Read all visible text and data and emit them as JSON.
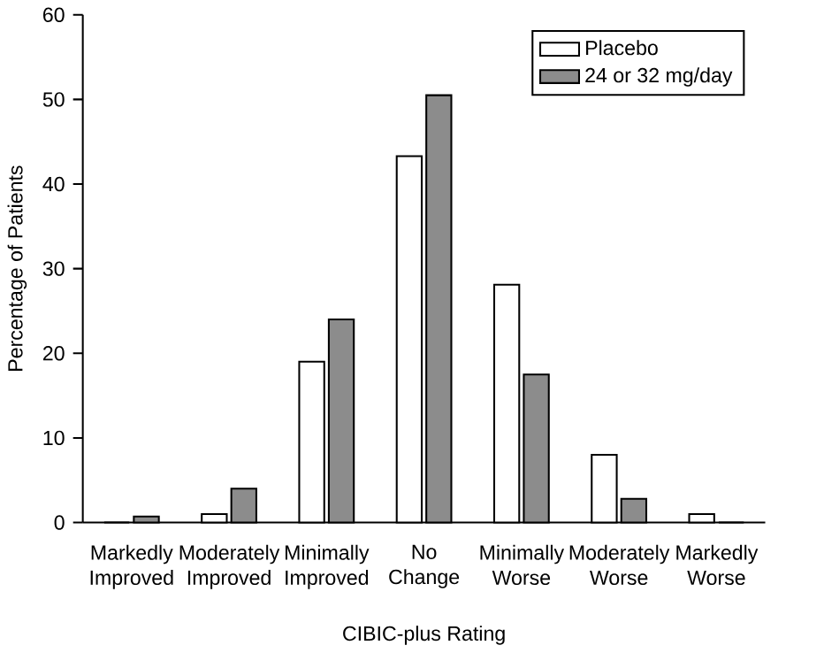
{
  "chart_data": {
    "type": "bar",
    "xlabel": "CIBIC-plus Rating",
    "ylabel": "Percentage of Patients",
    "categories": [
      "Markedly Improved",
      "Moderately Improved",
      "Minimally Improved",
      "No Change",
      "Minimally Worse",
      "Moderately Worse",
      "Markedly Worse"
    ],
    "series": [
      {
        "name": "Placebo",
        "color": "#ffffff",
        "values": [
          0,
          1,
          19,
          43.3,
          28.1,
          8,
          1
        ]
      },
      {
        "name": "24 or 32 mg/day",
        "color": "#8c8c8c",
        "values": [
          0.7,
          4,
          24,
          50.5,
          17.5,
          2.8,
          0
        ]
      }
    ],
    "ylim": [
      0,
      60
    ],
    "yticks": [
      0,
      10,
      20,
      30,
      40,
      50,
      60
    ],
    "grid": false,
    "legend": "top right"
  }
}
